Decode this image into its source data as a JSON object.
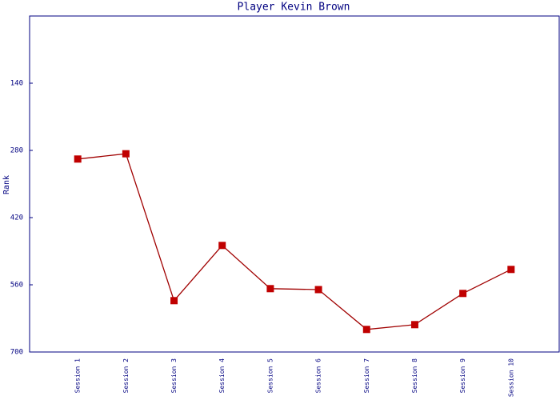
{
  "chart_data": {
    "type": "line",
    "title": "Player Kevin Brown",
    "y_label": "Rank",
    "categories": [
      "Session 1",
      "Session 2",
      "Session 3",
      "Session 4",
      "Session 5",
      "Session 6",
      "Session 7",
      "Session 8",
      "Session 9",
      "Session 10"
    ],
    "values": [
      298,
      287,
      593,
      478,
      568,
      570,
      653,
      643,
      578,
      528
    ],
    "color": "#c00000",
    "ylim": [
      700,
      0
    ],
    "yticks": [
      140,
      280,
      420,
      560,
      700
    ]
  }
}
